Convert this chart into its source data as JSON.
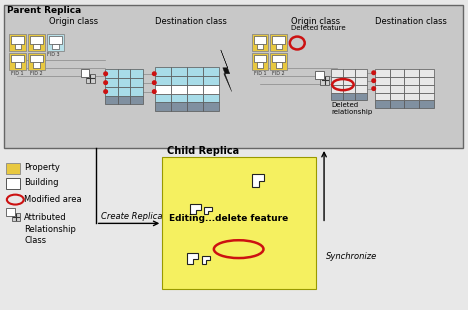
{
  "parent_title": "Parent Replica",
  "child_title": "Child Replica",
  "child_text": "Editing...delete feature",
  "origin_class_label": "Origin class",
  "dest_class_label": "Destination class",
  "deleted_feature_label": "Deleted feature",
  "deleted_relationship_label": "Deleted\nrelationship",
  "create_replica_label": "Create Replica",
  "synchronize_label": "Synchronize",
  "legend_property": "Property",
  "legend_building": "Building",
  "legend_modified": "Modified area",
  "legend_arc": "Attributed\nRelationship\nClass",
  "fid1": "FID 1",
  "fid2": "FID 2",
  "fid3": "FID 3",
  "table_blue": "#a8dce8",
  "table_white": "#e8e8e8",
  "table_header": "#8090a0",
  "gold": "#e8c840",
  "gold2": "#d4b840",
  "red": "#cc1111",
  "white": "#ffffff",
  "gray_bg": "#c8c8c8",
  "gray_med": "#b0b0b0",
  "child_yellow": "#f5f060",
  "child_yellow2": "#ffffa0",
  "dark": "#111111",
  "bg": "#e8e8e8"
}
